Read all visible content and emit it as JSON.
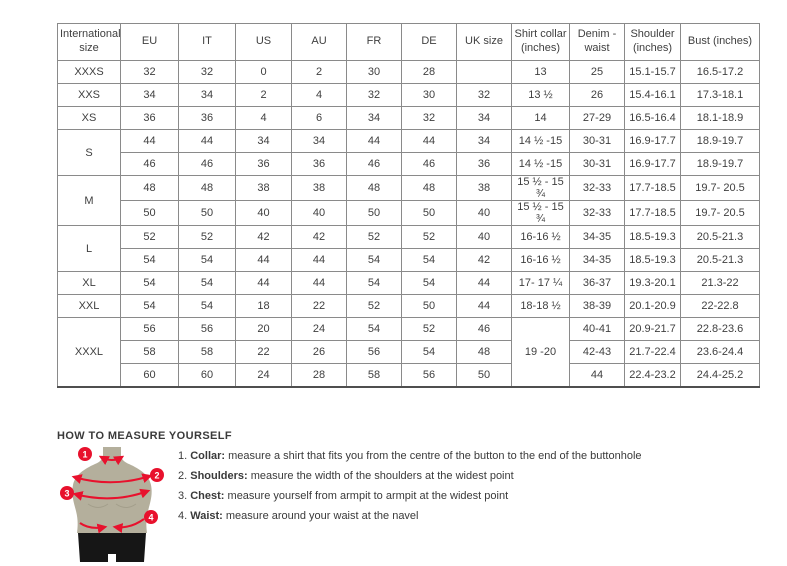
{
  "accent_color": "#e8112d",
  "figure_colors": {
    "torso": "#b4af9c",
    "shorts": "#161616"
  },
  "table": {
    "headers": [
      "International size",
      "EU",
      "IT",
      "US",
      "AU",
      "FR",
      "DE",
      "UK size",
      "Shirt collar (inches)",
      "Denim - waist",
      "Shoulder (inches)",
      "Bust (inches)"
    ],
    "groups": [
      {
        "size": "XXXS",
        "rows": [
          [
            "32",
            "32",
            "0",
            "2",
            "30",
            "28",
            "",
            "13",
            "25",
            "15.1-15.7",
            "16.5-17.2"
          ]
        ]
      },
      {
        "size": "XXS",
        "rows": [
          [
            "34",
            "34",
            "2",
            "4",
            "32",
            "30",
            "32",
            "13 ½",
            "26",
            "15.4-16.1",
            "17.3-18.1"
          ]
        ]
      },
      {
        "size": "XS",
        "rows": [
          [
            "36",
            "36",
            "4",
            "6",
            "34",
            "32",
            "34",
            "14",
            "27-29",
            "16.5-16.4",
            "18.1-18.9"
          ]
        ]
      },
      {
        "size": "S",
        "rows": [
          [
            "44",
            "44",
            "34",
            "34",
            "44",
            "44",
            "34",
            "14 ½ -15",
            "30-31",
            "16.9-17.7",
            "18.9-19.7"
          ],
          [
            "46",
            "46",
            "36",
            "36",
            "46",
            "46",
            "36",
            "14 ½ -15",
            "30-31",
            "16.9-17.7",
            "18.9-19.7"
          ]
        ]
      },
      {
        "size": "M",
        "rows": [
          [
            "48",
            "48",
            "38",
            "38",
            "48",
            "48",
            "38",
            "15 ½ - 15 ¾",
            "32-33",
            "17.7-18.5",
            "19.7- 20.5"
          ],
          [
            "50",
            "50",
            "40",
            "40",
            "50",
            "50",
            "40",
            "15 ½ - 15 ¾",
            "32-33",
            "17.7-18.5",
            "19.7- 20.5"
          ]
        ]
      },
      {
        "size": "L",
        "rows": [
          [
            "52",
            "52",
            "42",
            "42",
            "52",
            "52",
            "40",
            "16-16 ½",
            "34-35",
            "18.5-19.3",
            "20.5-21.3"
          ],
          [
            "54",
            "54",
            "44",
            "44",
            "54",
            "54",
            "42",
            "16-16 ½",
            "34-35",
            "18.5-19.3",
            "20.5-21.3"
          ]
        ]
      },
      {
        "size": "XL",
        "rows": [
          [
            "54",
            "54",
            "44",
            "44",
            "54",
            "54",
            "44",
            "17- 17 ¼",
            "36-37",
            "19.3-20.1",
            "21.3-22"
          ]
        ]
      },
      {
        "size": "XXL",
        "rows": [
          [
            "54",
            "54",
            "18",
            "22",
            "52",
            "50",
            "44",
            "18-18 ½",
            "38-39",
            "20.1-20.9",
            "22-22.8"
          ]
        ]
      },
      {
        "size": "XXXL",
        "collar_rowspan": 3,
        "rows": [
          [
            "56",
            "56",
            "20",
            "24",
            "54",
            "52",
            "46",
            "19 -20",
            "40-41",
            "20.9-21.7",
            "22.8-23.6"
          ],
          [
            "58",
            "58",
            "22",
            "26",
            "56",
            "54",
            "48",
            "",
            "42-43",
            "21.7-22.4",
            "23.6-24.4"
          ],
          [
            "60",
            "60",
            "24",
            "28",
            "58",
            "56",
            "50",
            "",
            "44",
            "22.4-23.2",
            "24.4-25.2"
          ]
        ]
      }
    ]
  },
  "measure": {
    "title": "HOW TO MEASURE YOURSELF",
    "steps": [
      {
        "num": "1.",
        "label": "Collar:",
        "text": " measure a shirt that fits you from the centre of the button to the end of the buttonhole"
      },
      {
        "num": "2.",
        "label": "Shoulders:",
        "text": " measure the width of the shoulders at the widest point"
      },
      {
        "num": "3.",
        "label": "Chest:",
        "text": " measure yourself from armpit to armpit at the widest point"
      },
      {
        "num": "4.",
        "label": "Waist:",
        "text": " measure around your waist at the navel"
      }
    ],
    "figure": {
      "markers": [
        "1",
        "2",
        "3",
        "4"
      ]
    }
  }
}
